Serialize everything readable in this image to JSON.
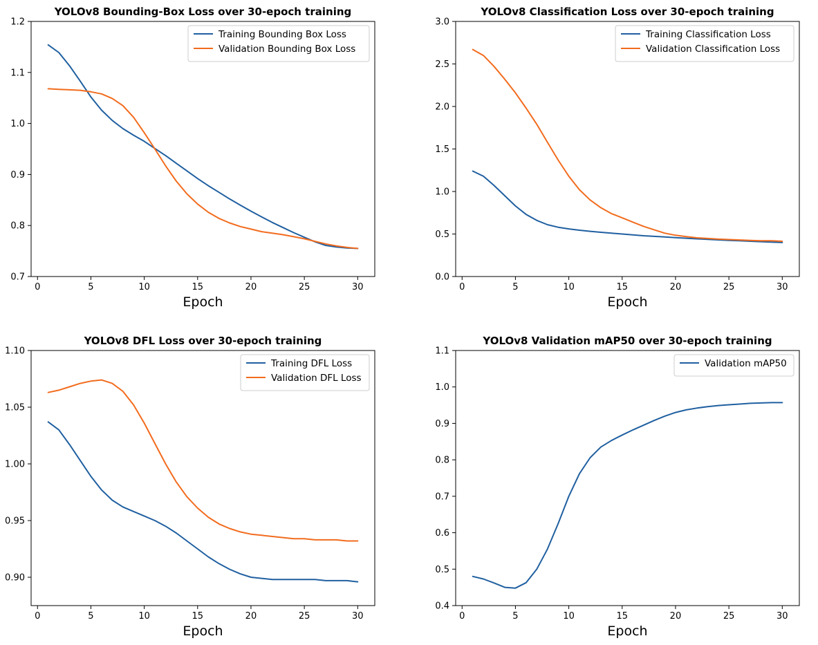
{
  "colors": {
    "training": "#1f5fa0",
    "validation": "#f26b1d"
  },
  "chart_data": [
    {
      "type": "line",
      "title": "YOLOv8 Bounding-Box Loss over 30-epoch training",
      "xlabel": "Epoch",
      "ylabel": "",
      "xlim": [
        -0.6,
        31.6
      ],
      "ylim": [
        0.7,
        1.2
      ],
      "xticks": [
        0,
        5,
        10,
        15,
        20,
        25,
        30
      ],
      "xtick_labels": [
        "0",
        "5",
        "10",
        "15",
        "20",
        "25",
        "30"
      ],
      "yticks": [
        0.7,
        0.8,
        0.9,
        1.0,
        1.1,
        1.2
      ],
      "ytick_labels": [
        "0.7",
        "0.8",
        "0.9",
        "1.0",
        "1.1",
        "1.2"
      ],
      "legend": "top-right",
      "grid": false,
      "x": [
        1,
        2,
        3,
        4,
        5,
        6,
        7,
        8,
        9,
        10,
        11,
        12,
        13,
        14,
        15,
        16,
        17,
        18,
        19,
        20,
        21,
        22,
        23,
        24,
        25,
        26,
        27,
        28,
        29,
        30
      ],
      "series": [
        {
          "name": "Training Bounding Box Loss",
          "color": "#1f5fa0",
          "values": [
            1.154,
            1.139,
            1.113,
            1.083,
            1.052,
            1.026,
            1.006,
            0.99,
            0.977,
            0.965,
            0.951,
            0.937,
            0.922,
            0.907,
            0.892,
            0.878,
            0.865,
            0.852,
            0.84,
            0.828,
            0.817,
            0.806,
            0.796,
            0.786,
            0.777,
            0.768,
            0.761,
            0.758,
            0.756,
            0.755
          ]
        },
        {
          "name": "Validation Bounding Box Loss",
          "color": "#f26b1d",
          "values": [
            1.068,
            1.067,
            1.066,
            1.065,
            1.062,
            1.058,
            1.049,
            1.035,
            1.012,
            0.982,
            0.95,
            0.917,
            0.887,
            0.862,
            0.842,
            0.826,
            0.814,
            0.805,
            0.798,
            0.793,
            0.788,
            0.785,
            0.782,
            0.778,
            0.774,
            0.769,
            0.764,
            0.76,
            0.757,
            0.755
          ]
        }
      ]
    },
    {
      "type": "line",
      "title": "YOLOv8 Classification Loss over 30-epoch training",
      "xlabel": "Epoch",
      "ylabel": "",
      "xlim": [
        -0.6,
        31.6
      ],
      "ylim": [
        0.0,
        3.0
      ],
      "xticks": [
        0,
        5,
        10,
        15,
        20,
        25,
        30
      ],
      "xtick_labels": [
        "0",
        "5",
        "10",
        "15",
        "20",
        "25",
        "30"
      ],
      "yticks": [
        0.0,
        0.5,
        1.0,
        1.5,
        2.0,
        2.5,
        3.0
      ],
      "ytick_labels": [
        "0.0",
        "0.5",
        "1.0",
        "1.5",
        "2.0",
        "2.5",
        "3.0"
      ],
      "legend": "top-right",
      "grid": false,
      "x": [
        1,
        2,
        3,
        4,
        5,
        6,
        7,
        8,
        9,
        10,
        11,
        12,
        13,
        14,
        15,
        16,
        17,
        18,
        19,
        20,
        21,
        22,
        23,
        24,
        25,
        26,
        27,
        28,
        29,
        30
      ],
      "series": [
        {
          "name": "Training Classification Loss",
          "color": "#1f5fa0",
          "values": [
            1.24,
            1.18,
            1.07,
            0.95,
            0.83,
            0.73,
            0.66,
            0.61,
            0.58,
            0.56,
            0.545,
            0.532,
            0.52,
            0.51,
            0.5,
            0.49,
            0.48,
            0.472,
            0.465,
            0.458,
            0.45,
            0.443,
            0.437,
            0.431,
            0.425,
            0.42,
            0.415,
            0.41,
            0.405,
            0.4
          ]
        },
        {
          "name": "Validation Classification Loss",
          "color": "#f26b1d",
          "values": [
            2.67,
            2.6,
            2.47,
            2.32,
            2.16,
            1.98,
            1.79,
            1.58,
            1.37,
            1.18,
            1.02,
            0.9,
            0.81,
            0.74,
            0.69,
            0.64,
            0.59,
            0.55,
            0.51,
            0.485,
            0.47,
            0.455,
            0.448,
            0.44,
            0.435,
            0.43,
            0.425,
            0.42,
            0.42,
            0.415
          ]
        }
      ]
    },
    {
      "type": "line",
      "title": "YOLOv8 DFL Loss over 30-epoch training",
      "xlabel": "Epoch",
      "ylabel": "",
      "xlim": [
        -0.6,
        31.6
      ],
      "ylim": [
        0.875,
        1.1
      ],
      "xticks": [
        0,
        5,
        10,
        15,
        20,
        25,
        30
      ],
      "xtick_labels": [
        "0",
        "5",
        "10",
        "15",
        "20",
        "25",
        "30"
      ],
      "yticks": [
        0.9,
        0.95,
        1.0,
        1.05,
        1.1
      ],
      "ytick_labels": [
        "0.90",
        "0.95",
        "1.00",
        "1.05",
        "1.10"
      ],
      "legend": "top-right",
      "grid": false,
      "x": [
        1,
        2,
        3,
        4,
        5,
        6,
        7,
        8,
        9,
        10,
        11,
        12,
        13,
        14,
        15,
        16,
        17,
        18,
        19,
        20,
        21,
        22,
        23,
        24,
        25,
        26,
        27,
        28,
        29,
        30
      ],
      "series": [
        {
          "name": "Training DFL Loss",
          "color": "#1f5fa0",
          "values": [
            1.037,
            1.03,
            1.017,
            1.003,
            0.989,
            0.977,
            0.968,
            0.962,
            0.958,
            0.954,
            0.95,
            0.945,
            0.939,
            0.932,
            0.925,
            0.918,
            0.912,
            0.907,
            0.903,
            0.9,
            0.899,
            0.898,
            0.898,
            0.898,
            0.898,
            0.898,
            0.897,
            0.897,
            0.897,
            0.896
          ]
        },
        {
          "name": "Validation DFL Loss",
          "color": "#f26b1d",
          "values": [
            1.063,
            1.065,
            1.068,
            1.071,
            1.073,
            1.074,
            1.071,
            1.064,
            1.052,
            1.036,
            1.018,
            1.0,
            0.984,
            0.971,
            0.961,
            0.953,
            0.947,
            0.943,
            0.94,
            0.938,
            0.937,
            0.936,
            0.935,
            0.934,
            0.934,
            0.933,
            0.933,
            0.933,
            0.932,
            0.932
          ]
        }
      ]
    },
    {
      "type": "line",
      "title": "YOLOv8 Validation mAP50 over 30-epoch training",
      "xlabel": "Epoch",
      "ylabel": "",
      "xlim": [
        -0.6,
        31.6
      ],
      "ylim": [
        0.4,
        1.1
      ],
      "xticks": [
        0,
        5,
        10,
        15,
        20,
        25,
        30
      ],
      "xtick_labels": [
        "0",
        "5",
        "10",
        "15",
        "20",
        "25",
        "30"
      ],
      "yticks": [
        0.4,
        0.5,
        0.6,
        0.7,
        0.8,
        0.9,
        1.0,
        1.1
      ],
      "ytick_labels": [
        "0.4",
        "0.5",
        "0.6",
        "0.7",
        "0.8",
        "0.9",
        "1.0",
        "1.1"
      ],
      "legend": "top-right",
      "grid": false,
      "x": [
        1,
        2,
        3,
        4,
        5,
        6,
        7,
        8,
        9,
        10,
        11,
        12,
        13,
        14,
        15,
        16,
        17,
        18,
        19,
        20,
        21,
        22,
        23,
        24,
        25,
        26,
        27,
        28,
        29,
        30
      ],
      "series": [
        {
          "name": "Validation mAP50",
          "color": "#1f5fa0",
          "values": [
            0.48,
            0.473,
            0.462,
            0.45,
            0.448,
            0.463,
            0.5,
            0.555,
            0.625,
            0.7,
            0.762,
            0.806,
            0.835,
            0.853,
            0.868,
            0.882,
            0.895,
            0.908,
            0.92,
            0.93,
            0.937,
            0.942,
            0.946,
            0.949,
            0.951,
            0.953,
            0.955,
            0.956,
            0.957,
            0.957
          ]
        }
      ]
    }
  ]
}
